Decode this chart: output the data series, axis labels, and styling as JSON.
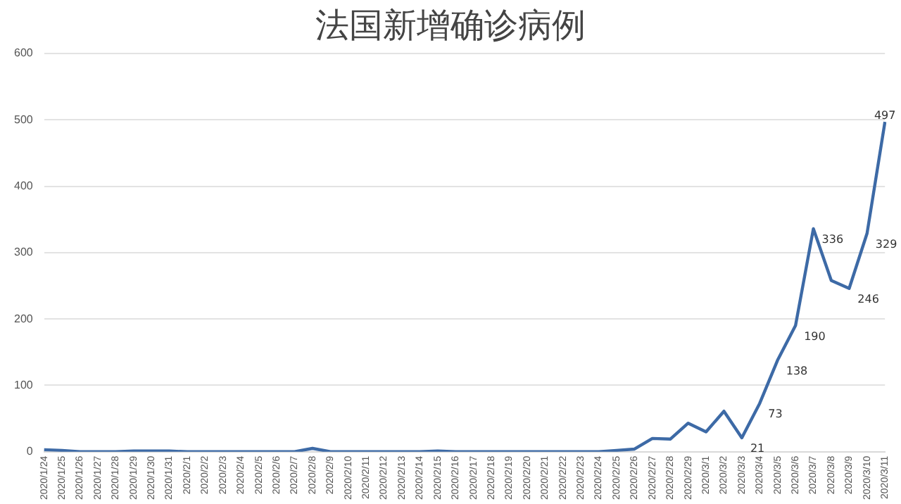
{
  "chart_data": {
    "type": "line",
    "title": "法国新增确诊病例",
    "categories": [
      "2020/1/24",
      "2020/1/25",
      "2020/1/26",
      "2020/1/27",
      "2020/1/28",
      "2020/1/29",
      "2020/1/30",
      "2020/1/31",
      "2020/2/1",
      "2020/2/2",
      "2020/2/3",
      "2020/2/4",
      "2020/2/5",
      "2020/2/6",
      "2020/2/7",
      "2020/2/8",
      "2020/2/9",
      "2020/2/10",
      "2020/2/11",
      "2020/2/12",
      "2020/2/13",
      "2020/2/14",
      "2020/2/15",
      "2020/2/16",
      "2020/2/17",
      "2020/2/18",
      "2020/2/19",
      "2020/2/20",
      "2020/2/21",
      "2020/2/22",
      "2020/2/23",
      "2020/2/24",
      "2020/2/25",
      "2020/2/26",
      "2020/2/27",
      "2020/2/28",
      "2020/2/29",
      "2020/3/1",
      "2020/3/2",
      "2020/3/3",
      "2020/3/4",
      "2020/3/5",
      "2020/3/6",
      "2020/3/7",
      "2020/3/8",
      "2020/3/9",
      "2020/3/10",
      "2020/3/11"
    ],
    "series": [
      {
        "color": "#3d6aa6",
        "values": [
          3,
          2,
          0,
          0,
          0,
          1,
          1,
          1,
          0,
          0,
          0,
          0,
          0,
          0,
          0,
          5,
          0,
          0,
          0,
          0,
          0,
          0,
          1,
          0,
          0,
          0,
          0,
          0,
          0,
          0,
          0,
          0,
          2,
          4,
          20,
          19,
          43,
          30,
          61,
          21,
          73,
          138,
          190,
          336,
          258,
          246,
          329,
          497
        ],
        "value_labels": [
          null,
          null,
          null,
          null,
          null,
          null,
          null,
          null,
          null,
          null,
          null,
          null,
          null,
          null,
          null,
          null,
          null,
          null,
          null,
          null,
          null,
          null,
          null,
          null,
          null,
          null,
          null,
          null,
          null,
          null,
          null,
          null,
          null,
          null,
          null,
          null,
          null,
          null,
          null,
          "21",
          "73",
          "138",
          "190",
          "336",
          null,
          "246",
          "329",
          "497"
        ]
      }
    ],
    "ylim": [
      0,
      600
    ],
    "yticks": [
      0,
      100,
      200,
      300,
      400,
      500,
      600
    ],
    "grid": "y",
    "legend": false,
    "marker": "none",
    "line_style": "solid"
  }
}
